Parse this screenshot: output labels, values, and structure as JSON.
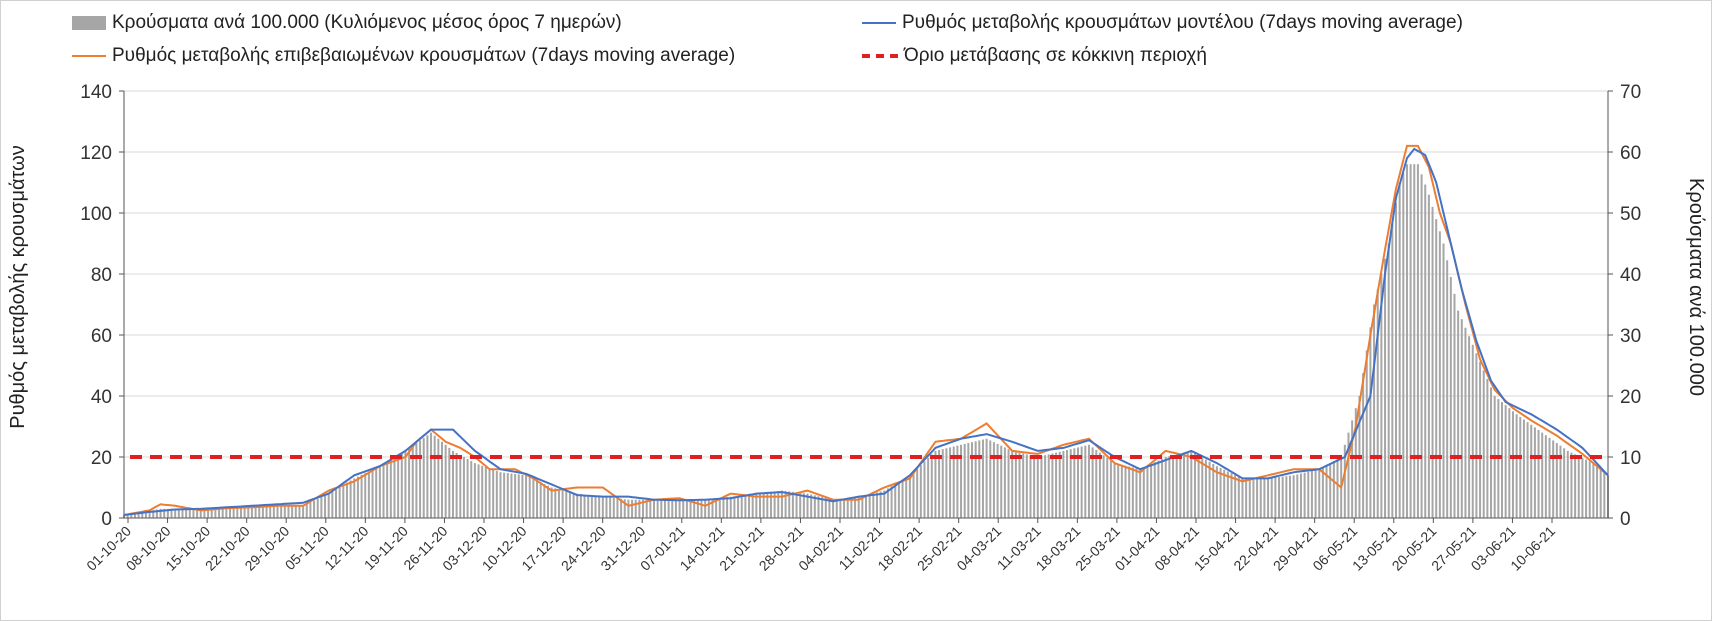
{
  "chart_data": {
    "type": "bar+line",
    "title": "",
    "legend": {
      "bars": "Κρούσματα ανά 100.000 (Κυλιόμενος μέσος όρος 7 ημερών)",
      "model_line": "Ρυθμός μεταβολής κρουσμάτων μοντέλου (7days moving average)",
      "confirmed_line": "Ρυθμός μεταβολής επιβεβαιωμένων κρουσμάτων (7days moving average)",
      "threshold": "Όριο μετάβασης σε κόκκινη περιοχή"
    },
    "ylabel_left": "Ρυθμός μεταβολής κρουσμάτων",
    "ylabel_right": "Κρούσματα ανά 100.000",
    "ylim_left": [
      0,
      140
    ],
    "ylim_right": [
      0,
      70
    ],
    "yticks_left": [
      "0",
      "20",
      "40",
      "60",
      "80",
      "100",
      "120",
      "140"
    ],
    "yticks_right": [
      "0",
      "10",
      "20",
      "30",
      "40",
      "50",
      "60",
      "70"
    ],
    "threshold_value_left": 20,
    "x_labels": [
      "01-10-20",
      "08-10-20",
      "15-10-20",
      "22-10-20",
      "29-10-20",
      "05-11-20",
      "12-11-20",
      "19-11-20",
      "26-11-20",
      "03-12-20",
      "10-12-20",
      "17-12-20",
      "24-12-20",
      "31-12-20",
      "07-01-21",
      "14-01-21",
      "21-01-21",
      "28-01-21",
      "04-02-21",
      "11-02-21",
      "18-02-21",
      "25-02-21",
      "04-03-21",
      "11-03-21",
      "18-03-21",
      "25-03-21",
      "01-04-21",
      "08-04-21",
      "15-04-21",
      "22-04-21",
      "29-04-21",
      "06-05-21",
      "13-05-21",
      "20-05-21",
      "27-05-21",
      "03-06-21",
      "10-06-21"
    ],
    "days": 259,
    "model_keypoints": [
      [
        0,
        1
      ],
      [
        7,
        2
      ],
      [
        14,
        2.8
      ],
      [
        21,
        3
      ],
      [
        28,
        3.5
      ],
      [
        35,
        4
      ],
      [
        42,
        4.5
      ],
      [
        49,
        5
      ],
      [
        56,
        8
      ],
      [
        63,
        14
      ],
      [
        70,
        17
      ],
      [
        77,
        22
      ],
      [
        84,
        29
      ],
      [
        90,
        29
      ],
      [
        96,
        22
      ],
      [
        103,
        16
      ],
      [
        110,
        14.5
      ],
      [
        117,
        11
      ],
      [
        124,
        7.5
      ],
      [
        131,
        7
      ],
      [
        138,
        7
      ],
      [
        145,
        6
      ],
      [
        152,
        5.8
      ],
      [
        159,
        6
      ],
      [
        166,
        6.5
      ],
      [
        173,
        8
      ],
      [
        180,
        8.5
      ],
      [
        187,
        7
      ],
      [
        194,
        5.5
      ],
      [
        201,
        7
      ],
      [
        208,
        8
      ],
      [
        215,
        14
      ],
      [
        222,
        23
      ],
      [
        229,
        26
      ],
      [
        236,
        27.5
      ],
      [
        243,
        25
      ],
      [
        250,
        22
      ],
      [
        257,
        23
      ],
      [
        264,
        25.5
      ],
      [
        271,
        20
      ],
      [
        278,
        16
      ],
      [
        285,
        19
      ],
      [
        292,
        22
      ],
      [
        299,
        18
      ],
      [
        306,
        13
      ],
      [
        313,
        13
      ],
      [
        320,
        15
      ],
      [
        327,
        16
      ],
      [
        334,
        20
      ],
      [
        341,
        40
      ],
      [
        345,
        80
      ],
      [
        348,
        105
      ],
      [
        351,
        118
      ],
      [
        353,
        121
      ],
      [
        356,
        119
      ],
      [
        359,
        110
      ],
      [
        362,
        95
      ],
      [
        366,
        75
      ],
      [
        370,
        58
      ],
      [
        374,
        45
      ],
      [
        378,
        38
      ],
      [
        385,
        34
      ],
      [
        392,
        29
      ],
      [
        399,
        23
      ],
      [
        406,
        14
      ]
    ],
    "confirmed_keypoints": [
      [
        0,
        1
      ],
      [
        7,
        2.5
      ],
      [
        10,
        4.5
      ],
      [
        14,
        4
      ],
      [
        21,
        2.5
      ],
      [
        28,
        3.2
      ],
      [
        35,
        3.5
      ],
      [
        42,
        4
      ],
      [
        49,
        4
      ],
      [
        56,
        9
      ],
      [
        63,
        12
      ],
      [
        70,
        17
      ],
      [
        77,
        20
      ],
      [
        80,
        25
      ],
      [
        84,
        29
      ],
      [
        88,
        25
      ],
      [
        92,
        23
      ],
      [
        96,
        20
      ],
      [
        100,
        16
      ],
      [
        107,
        16
      ],
      [
        112,
        13
      ],
      [
        117,
        9
      ],
      [
        124,
        10
      ],
      [
        131,
        10
      ],
      [
        138,
        4
      ],
      [
        145,
        6
      ],
      [
        152,
        6.5
      ],
      [
        159,
        4
      ],
      [
        166,
        8
      ],
      [
        173,
        7
      ],
      [
        180,
        7
      ],
      [
        187,
        9
      ],
      [
        194,
        6
      ],
      [
        201,
        6
      ],
      [
        208,
        10
      ],
      [
        215,
        13
      ],
      [
        222,
        25
      ],
      [
        229,
        26
      ],
      [
        236,
        31
      ],
      [
        243,
        22
      ],
      [
        250,
        21
      ],
      [
        257,
        24
      ],
      [
        264,
        26
      ],
      [
        271,
        18
      ],
      [
        278,
        15
      ],
      [
        285,
        22
      ],
      [
        292,
        20
      ],
      [
        299,
        15
      ],
      [
        306,
        12
      ],
      [
        313,
        14
      ],
      [
        320,
        16
      ],
      [
        327,
        16
      ],
      [
        333,
        10
      ],
      [
        337,
        30
      ],
      [
        341,
        60
      ],
      [
        345,
        88
      ],
      [
        348,
        108
      ],
      [
        351,
        122
      ],
      [
        354,
        122
      ],
      [
        357,
        115
      ],
      [
        360,
        100
      ],
      [
        363,
        90
      ],
      [
        367,
        70
      ],
      [
        371,
        52
      ],
      [
        375,
        42
      ],
      [
        380,
        36
      ],
      [
        385,
        32
      ],
      [
        392,
        27
      ],
      [
        399,
        21
      ],
      [
        406,
        14
      ]
    ],
    "bars_keypoints_right_axis": [
      [
        0,
        0.5
      ],
      [
        10,
        1.5
      ],
      [
        20,
        1.5
      ],
      [
        35,
        2
      ],
      [
        49,
        2
      ],
      [
        56,
        4
      ],
      [
        63,
        6.5
      ],
      [
        70,
        8.5
      ],
      [
        77,
        11
      ],
      [
        84,
        14
      ],
      [
        90,
        11
      ],
      [
        96,
        9
      ],
      [
        103,
        7.5
      ],
      [
        110,
        7
      ],
      [
        117,
        5
      ],
      [
        124,
        4
      ],
      [
        131,
        3.5
      ],
      [
        138,
        3
      ],
      [
        145,
        3
      ],
      [
        152,
        3
      ],
      [
        159,
        3
      ],
      [
        166,
        3.5
      ],
      [
        173,
        4
      ],
      [
        180,
        4.5
      ],
      [
        187,
        4
      ],
      [
        194,
        3
      ],
      [
        201,
        3.5
      ],
      [
        208,
        4.5
      ],
      [
        215,
        7
      ],
      [
        222,
        11
      ],
      [
        229,
        12
      ],
      [
        236,
        13
      ],
      [
        243,
        11
      ],
      [
        250,
        10
      ],
      [
        257,
        11
      ],
      [
        264,
        12
      ],
      [
        271,
        9
      ],
      [
        278,
        8
      ],
      [
        285,
        10
      ],
      [
        292,
        11
      ],
      [
        299,
        8.5
      ],
      [
        306,
        6.5
      ],
      [
        313,
        6.5
      ],
      [
        320,
        7
      ],
      [
        327,
        8
      ],
      [
        333,
        10
      ],
      [
        338,
        20
      ],
      [
        342,
        35
      ],
      [
        346,
        45
      ],
      [
        349,
        55
      ],
      [
        351,
        58
      ],
      [
        354,
        58
      ],
      [
        357,
        53
      ],
      [
        361,
        45
      ],
      [
        365,
        34
      ],
      [
        370,
        27
      ],
      [
        375,
        20
      ],
      [
        381,
        17
      ],
      [
        388,
        14
      ],
      [
        395,
        11
      ],
      [
        402,
        9
      ],
      [
        406,
        7
      ]
    ]
  }
}
